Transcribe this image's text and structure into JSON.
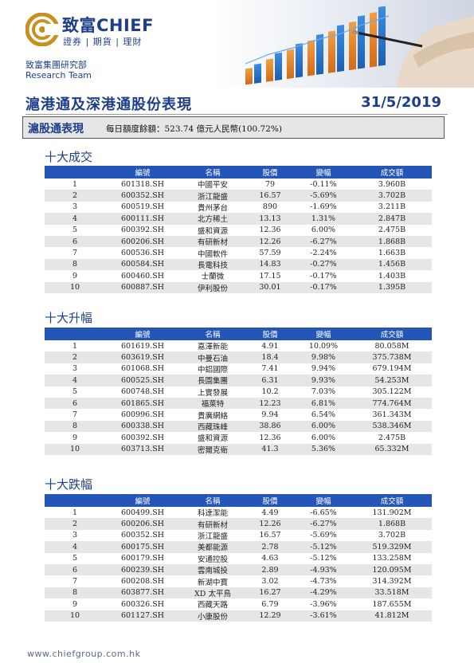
{
  "brand": {
    "name": "致富CHIEF",
    "tagline": "證券 | 期貨 | 理財",
    "department": "致富集團研究部",
    "department_en": "Research Team"
  },
  "doc": {
    "title": "滬港通及深港通股份表現",
    "date": "31/5/2019"
  },
  "quota": {
    "label": "滬股通表現",
    "text": "每日額度餘額：523.74 億元人民幣(100.72%)"
  },
  "columns": [
    "編號",
    "名稱",
    "股價",
    "變幅",
    "成交額"
  ],
  "sections": [
    {
      "title": "十大成交",
      "rows": [
        {
          "rank": "1",
          "code": "601318.SH",
          "name": "中國平安",
          "price": "79",
          "change": "-0.11%",
          "turnover": "3.960B",
          "dir": "neg"
        },
        {
          "rank": "2",
          "code": "600352.SH",
          "name": "浙江龍盛",
          "price": "16.57",
          "change": "-5.69%",
          "turnover": "3.702B",
          "dir": "neg"
        },
        {
          "rank": "3",
          "code": "600519.SH",
          "name": "貴州茅台",
          "price": "890",
          "change": "-1.69%",
          "turnover": "3.211B",
          "dir": "neg"
        },
        {
          "rank": "4",
          "code": "600111.SH",
          "name": "北方稀土",
          "price": "13.13",
          "change": "1.31%",
          "turnover": "2.847B",
          "dir": "pos"
        },
        {
          "rank": "5",
          "code": "600392.SH",
          "name": "盛和資源",
          "price": "12.36",
          "change": "6.00%",
          "turnover": "2.475B",
          "dir": "pos"
        },
        {
          "rank": "6",
          "code": "600206.SH",
          "name": "有研新材",
          "price": "12.26",
          "change": "-6.27%",
          "turnover": "1.868B",
          "dir": "neg"
        },
        {
          "rank": "7",
          "code": "600536.SH",
          "name": "中國軟件",
          "price": "57.59",
          "change": "-2.24%",
          "turnover": "1.663B",
          "dir": "neg"
        },
        {
          "rank": "8",
          "code": "600584.SH",
          "name": "長電科技",
          "price": "14.83",
          "change": "-0.27%",
          "turnover": "1.456B",
          "dir": "neg"
        },
        {
          "rank": "9",
          "code": "600460.SH",
          "name": "士蘭微",
          "price": "17.15",
          "change": "-0.17%",
          "turnover": "1.403B",
          "dir": "neg"
        },
        {
          "rank": "10",
          "code": "600887.SH",
          "name": "伊利股份",
          "price": "30.01",
          "change": "-0.17%",
          "turnover": "1.395B",
          "dir": "neg"
        }
      ]
    },
    {
      "title": "十大升幅",
      "rows": [
        {
          "rank": "1",
          "code": "601619.SH",
          "name": "嘉澤新能",
          "price": "4.91",
          "change": "10.09%",
          "turnover": "80.058M",
          "dir": "pos"
        },
        {
          "rank": "2",
          "code": "603619.SH",
          "name": "中曼石油",
          "price": "18.4",
          "change": "9.98%",
          "turnover": "375.738M",
          "dir": "pos"
        },
        {
          "rank": "3",
          "code": "601068.SH",
          "name": "中鋁國際",
          "price": "7.41",
          "change": "9.94%",
          "turnover": "679.194M",
          "dir": "pos"
        },
        {
          "rank": "4",
          "code": "600525.SH",
          "name": "長園集團",
          "price": "6.31",
          "change": "9.93%",
          "turnover": "54.253M",
          "dir": "pos"
        },
        {
          "rank": "5",
          "code": "600748.SH",
          "name": "上實發展",
          "price": "10.2",
          "change": "7.03%",
          "turnover": "305.122M",
          "dir": "pos"
        },
        {
          "rank": "6",
          "code": "601865.SH",
          "name": "福萊特",
          "price": "12.23",
          "change": "6.81%",
          "turnover": "774.764M",
          "dir": "pos"
        },
        {
          "rank": "7",
          "code": "600996.SH",
          "name": "貴廣網絡",
          "price": "9.94",
          "change": "6.54%",
          "turnover": "361.343M",
          "dir": "pos"
        },
        {
          "rank": "8",
          "code": "600338.SH",
          "name": "西藏珠峰",
          "price": "38.86",
          "change": "6.00%",
          "turnover": "538.346M",
          "dir": "pos"
        },
        {
          "rank": "9",
          "code": "600392.SH",
          "name": "盛和資源",
          "price": "12.36",
          "change": "6.00%",
          "turnover": "2.475B",
          "dir": "pos"
        },
        {
          "rank": "10",
          "code": "603713.SH",
          "name": "密爾克衛",
          "price": "41.3",
          "change": "5.36%",
          "turnover": "65.332M",
          "dir": "pos"
        }
      ]
    },
    {
      "title": "十大跌幅",
      "rows": [
        {
          "rank": "1",
          "code": "600499.SH",
          "name": "科達潔能",
          "price": "4.49",
          "change": "-6.65%",
          "turnover": "131.902M",
          "dir": "neg"
        },
        {
          "rank": "2",
          "code": "600206.SH",
          "name": "有研新材",
          "price": "12.26",
          "change": "-6.27%",
          "turnover": "1.868B",
          "dir": "neg"
        },
        {
          "rank": "3",
          "code": "600352.SH",
          "name": "浙江龍盛",
          "price": "16.57",
          "change": "-5.69%",
          "turnover": "3.702B",
          "dir": "neg"
        },
        {
          "rank": "4",
          "code": "600175.SH",
          "name": "美都能源",
          "price": "2.78",
          "change": "-5.12%",
          "turnover": "519.329M",
          "dir": "neg"
        },
        {
          "rank": "5",
          "code": "600179.SH",
          "name": "安通控股",
          "price": "4.63",
          "change": "-5.12%",
          "turnover": "133.258M",
          "dir": "neg"
        },
        {
          "rank": "6",
          "code": "600239.SH",
          "name": "雲南城投",
          "price": "2.89",
          "change": "-4.93%",
          "turnover": "120.095M",
          "dir": "neg"
        },
        {
          "rank": "7",
          "code": "600208.SH",
          "name": "新湖中寶",
          "price": "3.02",
          "change": "-4.73%",
          "turnover": "314.392M",
          "dir": "neg"
        },
        {
          "rank": "8",
          "code": "603877.SH",
          "name": "XD 太平鳥",
          "price": "16.27",
          "change": "-4.29%",
          "turnover": "33.518M",
          "dir": "neg"
        },
        {
          "rank": "9",
          "code": "600326.SH",
          "name": "西藏天路",
          "price": "6.79",
          "change": "-3.96%",
          "turnover": "187.655M",
          "dir": "neg"
        },
        {
          "rank": "10",
          "code": "601127.SH",
          "name": "小康股份",
          "price": "12.29",
          "change": "-3.61%",
          "turnover": "41.812M",
          "dir": "neg"
        }
      ]
    }
  ],
  "footer": {
    "url": "www.chiefgroup.com.hk"
  },
  "colors": {
    "brand_blue": "#1d3f8a",
    "header_blue": "#2456b8",
    "gain": "#1aa034",
    "loss": "#d41f1f",
    "logo_gold": "#c8911f"
  }
}
